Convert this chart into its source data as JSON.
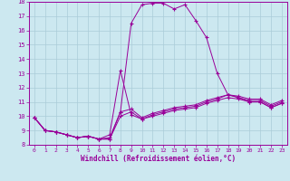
{
  "xlabel": "Windchill (Refroidissement éolien,°C)",
  "xlim": [
    -0.5,
    23.5
  ],
  "ylim": [
    8,
    18
  ],
  "yticks": [
    8,
    9,
    10,
    11,
    12,
    13,
    14,
    15,
    16,
    17,
    18
  ],
  "xticks": [
    0,
    1,
    2,
    3,
    4,
    5,
    6,
    7,
    8,
    9,
    10,
    11,
    12,
    13,
    14,
    15,
    16,
    17,
    18,
    19,
    20,
    21,
    22,
    23
  ],
  "background_color": "#cce8f0",
  "grid_color": "#aaccd8",
  "line_color": "#990099",
  "lines": [
    [
      9.9,
      9.0,
      8.9,
      8.7,
      8.5,
      8.6,
      8.4,
      8.4,
      10.0,
      10.3,
      9.8,
      10.0,
      10.2,
      10.4,
      10.5,
      10.6,
      10.9,
      11.1,
      11.3,
      11.2,
      11.0,
      11.0,
      10.6,
      10.9
    ],
    [
      9.9,
      9.0,
      8.9,
      8.7,
      8.5,
      8.6,
      8.4,
      8.4,
      10.3,
      16.5,
      17.8,
      17.9,
      17.9,
      17.5,
      17.8,
      16.7,
      15.5,
      13.0,
      11.5,
      11.3,
      11.0,
      11.0,
      10.6,
      10.9
    ],
    [
      9.9,
      9.0,
      8.9,
      8.7,
      8.5,
      8.6,
      8.4,
      8.7,
      13.2,
      10.1,
      9.8,
      10.1,
      10.3,
      10.5,
      10.6,
      10.7,
      11.0,
      11.2,
      11.5,
      11.3,
      11.1,
      11.1,
      10.7,
      11.0
    ],
    [
      9.9,
      9.0,
      8.9,
      8.7,
      8.5,
      8.6,
      8.4,
      8.5,
      10.3,
      10.5,
      9.9,
      10.2,
      10.4,
      10.6,
      10.7,
      10.8,
      11.1,
      11.3,
      11.5,
      11.4,
      11.2,
      11.2,
      10.8,
      11.1
    ]
  ]
}
